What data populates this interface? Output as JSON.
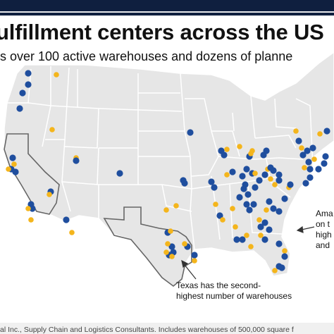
{
  "title": "ulfillment centers across the US",
  "subtitle": "s over 100 active warehouses and dozens of planne",
  "colors": {
    "active": "#1f4e9e",
    "planned": "#f4b51c",
    "land": "#e6e6e6",
    "border": "#ffffff",
    "highlight": "#666666",
    "header": "#0f1f3f"
  },
  "texas_note": [
    "Texas has the second-",
    "highest number of warehouses"
  ],
  "right_note": [
    "Ama",
    "on t",
    "high",
    "and"
  ],
  "source": "al Inc., Supply Chain and Logistics Consultants. Includes warehouses of 500,000 square f",
  "icons": {
    "pointer": "arrow-icon"
  }
}
